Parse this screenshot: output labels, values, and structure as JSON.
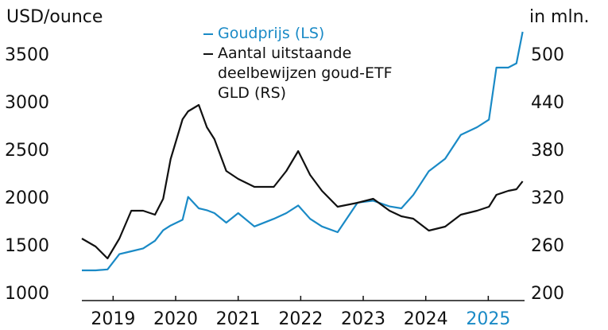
{
  "chart_data": {
    "type": "line",
    "y_label": "USD/ounce",
    "y2_label": "in mln.",
    "x": [
      2018.5,
      2018.72,
      2018.91,
      2019.1,
      2019.29,
      2019.48,
      2019.67,
      2019.8,
      2019.92,
      2020.11,
      2020.2,
      2020.37,
      2020.5,
      2020.62,
      2020.81,
      2021.0,
      2021.26,
      2021.57,
      2021.77,
      2021.96,
      2022.15,
      2022.34,
      2022.59,
      2022.91,
      2023.16,
      2023.42,
      2023.61,
      2023.8,
      2024.05,
      2024.31,
      2024.56,
      2024.82,
      2025.01,
      2025.13,
      2025.32,
      2025.45,
      2025.55
    ],
    "series": [
      {
        "name": "Goudprijs (LS)",
        "color": "#1a8ac6",
        "axis": "y",
        "values": [
          1250,
          1250,
          1260,
          1420,
          1450,
          1480,
          1560,
          1670,
          1720,
          1780,
          2020,
          1900,
          1880,
          1850,
          1750,
          1850,
          1710,
          1790,
          1850,
          1930,
          1790,
          1710,
          1650,
          1960,
          1980,
          1920,
          1900,
          2040,
          2290,
          2420,
          2670,
          2750,
          2830,
          3375,
          3375,
          3420,
          3750
        ]
      },
      {
        "name": "Aantal uitstaande deelbewijzen goud-ETF GLD (RS)",
        "color": "#111111",
        "axis": "y2",
        "values": [
          270,
          260,
          245,
          270,
          305,
          305,
          300,
          320,
          370,
          420,
          430,
          438,
          410,
          395,
          355,
          345,
          335,
          335,
          355,
          380,
          350,
          330,
          310,
          315,
          320,
          305,
          298,
          295,
          280,
          285,
          300,
          305,
          310,
          325,
          330,
          332,
          342
        ]
      }
    ],
    "xlim": [
      2018.5,
      2025.58
    ],
    "xticks": [
      2019,
      2020,
      2021,
      2022,
      2023,
      2024,
      2025
    ],
    "highlight_xtick": 2025,
    "highlight_color": "#1a8ac6",
    "ylim": [
      1000,
      3750
    ],
    "yticks": [
      1000,
      1500,
      2000,
      2500,
      3000,
      3500
    ],
    "y2lim": [
      200,
      530
    ],
    "y2ticks": [
      200,
      260,
      320,
      380,
      440,
      500
    ],
    "grid": false
  }
}
